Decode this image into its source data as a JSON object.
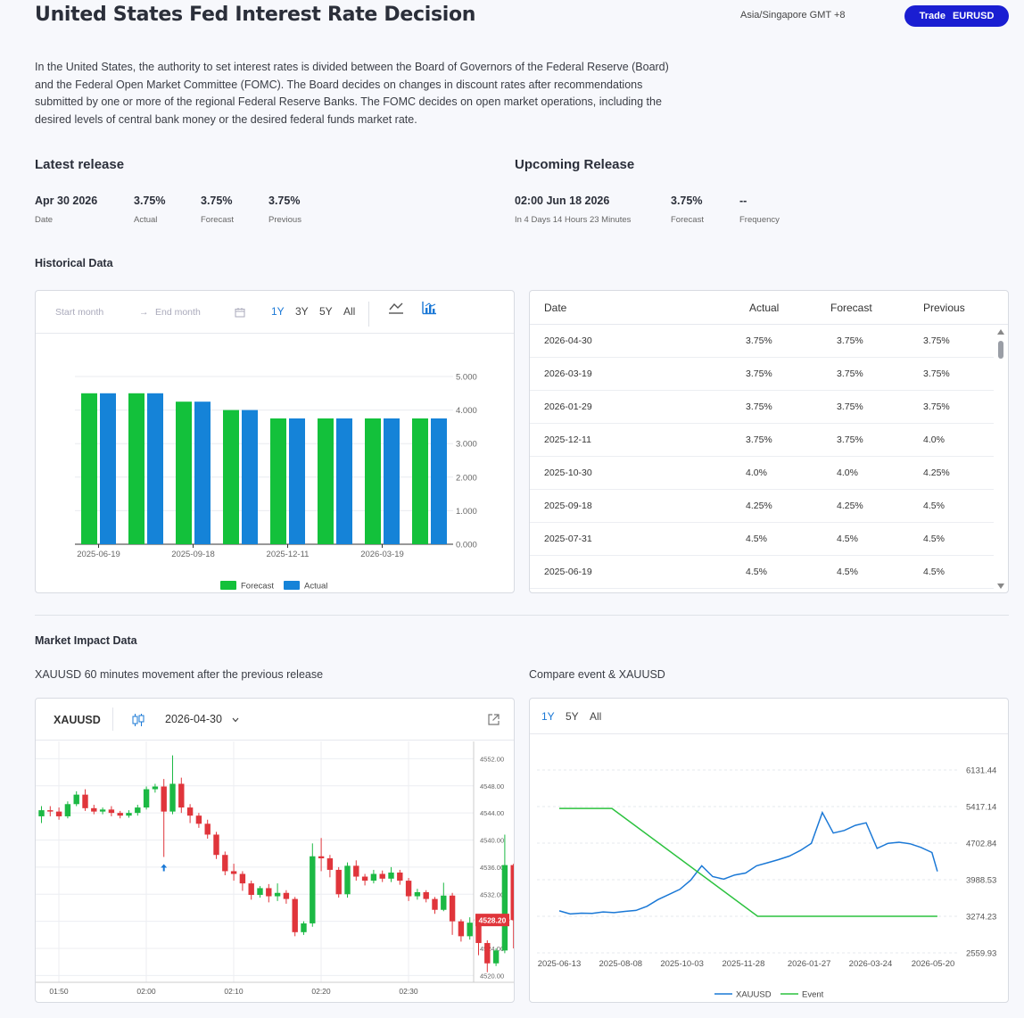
{
  "header": {
    "title": "United States Fed Interest Rate Decision",
    "timezone": "Asia/Singapore GMT +8",
    "trade_label": "Trade",
    "trade_symbol": "EURUSD"
  },
  "description": "In the United States, the authority to set interest rates is divided between the Board of Governors of the Federal Reserve (Board) and the Federal Open Market Committee (FOMC). The Board decides on changes in discount rates after recommendations submitted by one or more of the regional Federal Reserve Banks. The FOMC decides on open market operations, including the desired levels of central bank money or the desired federal funds market rate.",
  "latest": {
    "heading": "Latest release",
    "date_value": "Apr 30 2026",
    "date_label": "Date",
    "actual_value": "3.75%",
    "actual_label": "Actual",
    "forecast_value": "3.75%",
    "forecast_label": "Forecast",
    "previous_value": "3.75%",
    "previous_label": "Previous"
  },
  "upcoming": {
    "heading": "Upcoming Release",
    "time_value": "02:00 Jun 18 2026",
    "time_label": "In 4 Days 14 Hours 23 Minutes",
    "forecast_value": "3.75%",
    "forecast_label": "Forecast",
    "frequency_value": "--",
    "frequency_label": "Frequency"
  },
  "historical": {
    "heading": "Historical Data",
    "start_placeholder": "Start month",
    "end_placeholder": "End month",
    "arrow": "→",
    "ranges": [
      "1Y",
      "3Y",
      "5Y",
      "All"
    ],
    "active_range": "1Y",
    "table": {
      "headers": [
        "Date",
        "Actual",
        "Forecast",
        "Previous"
      ],
      "rows": [
        [
          "2026-04-30",
          "3.75%",
          "3.75%",
          "3.75%"
        ],
        [
          "2026-03-19",
          "3.75%",
          "3.75%",
          "3.75%"
        ],
        [
          "2026-01-29",
          "3.75%",
          "3.75%",
          "3.75%"
        ],
        [
          "2025-12-11",
          "3.75%",
          "3.75%",
          "4.0%"
        ],
        [
          "2025-10-30",
          "4.0%",
          "4.0%",
          "4.25%"
        ],
        [
          "2025-09-18",
          "4.25%",
          "4.25%",
          "4.5%"
        ],
        [
          "2025-07-31",
          "4.5%",
          "4.5%",
          "4.5%"
        ],
        [
          "2025-06-19",
          "4.5%",
          "4.5%",
          "4.5%"
        ]
      ]
    }
  },
  "market": {
    "heading": "Market Impact Data",
    "left_caption": "XAUUSD 60 minutes movement after the previous release",
    "right_caption": "Compare event & XAUUSD",
    "symbol": "XAUUSD",
    "date_select": "2026-04-30",
    "compare_ranges": [
      "1Y",
      "5Y",
      "All"
    ],
    "compare_active": "1Y",
    "price_tag": "4528.20"
  },
  "colors": {
    "forecast": "#13c13b",
    "actual": "#1583d8",
    "up": "#1cb944",
    "down": "#e0353b",
    "accent": "#1a1ed2",
    "xauusd_line": "#1a78d6",
    "event_line": "#2cc23f"
  },
  "chart_data": [
    {
      "type": "bar",
      "categories": [
        "2025-06-19",
        "2025-07-31",
        "2025-09-18",
        "2025-10-30",
        "2025-12-11",
        "2026-01-29",
        "2026-03-19",
        "2026-04-30"
      ],
      "x_tick_labels": [
        "2025-06-19",
        "2025-09-18",
        "2025-12-11",
        "2026-03-19"
      ],
      "series": [
        {
          "name": "Forecast",
          "values": [
            4.5,
            4.5,
            4.25,
            4.0,
            3.75,
            3.75,
            3.75,
            3.75
          ]
        },
        {
          "name": "Actual",
          "values": [
            4.5,
            4.5,
            4.25,
            4.0,
            3.75,
            3.75,
            3.75,
            3.75
          ]
        }
      ],
      "ylim": [
        0,
        5
      ],
      "y_ticks": [
        "0.000",
        "1.000",
        "2.000",
        "3.000",
        "4.000",
        "5.000"
      ],
      "y_axis": "right",
      "legend": "bottom",
      "grid": true
    },
    {
      "type": "candlestick",
      "title": "XAUUSD",
      "x_tick_labels": [
        "01:50",
        "02:00",
        "02:10",
        "02:20",
        "02:30"
      ],
      "y_ticks": [
        "4520.00",
        "4524.00",
        "4528.00",
        "4532.00",
        "4536.00",
        "4540.00",
        "4544.00",
        "4548.00",
        "4552.00"
      ],
      "ylim": [
        4519,
        4553.5
      ],
      "y_axis": "right",
      "grid": true,
      "candles": [
        [
          4543.5,
          4544.4,
          4542.5,
          4545.0
        ],
        [
          4544.4,
          4544.2,
          4543.5,
          4545.0
        ],
        [
          4544.2,
          4543.5,
          4543.0,
          4544.8
        ],
        [
          4543.5,
          4545.3,
          4543.2,
          4545.7
        ],
        [
          4545.3,
          4546.7,
          4545.0,
          4547.2
        ],
        [
          4546.7,
          4544.7,
          4544.3,
          4547.5
        ],
        [
          4544.7,
          4544.2,
          4543.8,
          4545.2
        ],
        [
          4544.2,
          4544.5,
          4543.8,
          4544.8
        ],
        [
          4544.5,
          4544.0,
          4543.5,
          4545.0
        ],
        [
          4544.0,
          4543.6,
          4543.2,
          4544.3
        ],
        [
          4543.6,
          4544.0,
          4543.3,
          4544.4
        ],
        [
          4544.0,
          4544.8,
          4543.6,
          4545.2
        ],
        [
          4544.8,
          4547.5,
          4544.5,
          4547.9
        ],
        [
          4547.5,
          4547.9,
          4547.0,
          4548.3
        ],
        [
          4547.9,
          4544.2,
          4537.5,
          4549.0
        ],
        [
          4544.2,
          4548.3,
          4543.8,
          4552.5
        ],
        [
          4548.3,
          4544.8,
          4544.0,
          4549.2
        ],
        [
          4544.8,
          4543.6,
          4542.5,
          4545.3
        ],
        [
          4543.6,
          4542.4,
          4541.8,
          4544.0
        ],
        [
          4542.4,
          4540.8,
          4540.2,
          4543.0
        ],
        [
          4540.8,
          4537.8,
          4537.2,
          4541.2
        ],
        [
          4537.8,
          4535.4,
          4534.8,
          4538.3
        ],
        [
          4535.4,
          4535.0,
          4534.0,
          4536.5
        ],
        [
          4535.0,
          4533.6,
          4532.5,
          4535.4
        ],
        [
          4533.6,
          4531.9,
          4531.2,
          4534.0
        ],
        [
          4531.9,
          4532.9,
          4531.5,
          4533.2
        ],
        [
          4532.9,
          4531.7,
          4530.8,
          4533.5
        ],
        [
          4531.7,
          4532.2,
          4531.0,
          4533.6
        ],
        [
          4532.2,
          4531.3,
          4530.6,
          4532.6
        ],
        [
          4531.3,
          4526.4,
          4525.8,
          4531.6
        ],
        [
          4526.4,
          4527.7,
          4526.0,
          4528.0
        ],
        [
          4527.7,
          4537.6,
          4527.2,
          4539.5
        ],
        [
          4537.6,
          4537.3,
          4535.4,
          4540.3
        ],
        [
          4537.3,
          4535.6,
          4534.5,
          4537.8
        ],
        [
          4535.6,
          4532.0,
          4531.5,
          4536.0
        ],
        [
          4532.0,
          4536.2,
          4531.5,
          4536.7
        ],
        [
          4536.2,
          4534.6,
          4534.0,
          4537.0
        ],
        [
          4534.6,
          4534.0,
          4533.3,
          4535.0
        ],
        [
          4534.0,
          4535.0,
          4533.6,
          4535.6
        ],
        [
          4535.0,
          4534.3,
          4533.8,
          4535.5
        ],
        [
          4534.3,
          4535.2,
          4533.8,
          4536.0
        ],
        [
          4535.2,
          4534.0,
          4533.4,
          4535.6
        ],
        [
          4534.0,
          4531.7,
          4531.0,
          4534.4
        ],
        [
          4531.7,
          4532.3,
          4531.2,
          4532.8
        ],
        [
          4532.3,
          4531.3,
          4530.8,
          4532.6
        ],
        [
          4531.3,
          4529.7,
          4529.1,
          4531.6
        ],
        [
          4529.7,
          4531.8,
          4529.5,
          4533.7
        ],
        [
          4531.8,
          4528.0,
          4526.0,
          4532.2
        ],
        [
          4528.0,
          4525.8,
          4525.0,
          4528.3
        ],
        [
          4525.8,
          4527.8,
          4525.3,
          4528.6
        ],
        [
          4527.8,
          4524.8,
          4523.0,
          4528.2
        ],
        [
          4524.8,
          4521.8,
          4520.5,
          4525.2
        ],
        [
          4521.8,
          4523.7,
          4521.4,
          4524.0
        ],
        [
          4523.7,
          4536.3,
          4523.3,
          4540.8
        ],
        [
          4536.3,
          4528.2,
          4524.0,
          4536.5
        ]
      ],
      "marker": {
        "candle_index": 14,
        "type": "up-arrow"
      }
    },
    {
      "type": "line",
      "x_tick_labels": [
        "2025-06-13",
        "2025-08-08",
        "2025-10-03",
        "2025-11-28",
        "2026-01-27",
        "2026-03-24",
        "2026-05-20"
      ],
      "y_ticks": [
        "2559.93",
        "3274.23",
        "3988.53",
        "4702.84",
        "5417.14",
        "6131.44"
      ],
      "ylim": [
        2559.93,
        6131.44
      ],
      "y_axis": "right",
      "legend": "bottom",
      "grid": true,
      "series": [
        {
          "name": "XAUUSD",
          "x": [
            "2025-06-13",
            "2025-06-23",
            "2025-07-03",
            "2025-07-13",
            "2025-07-23",
            "2025-08-02",
            "2025-08-12",
            "2025-08-22",
            "2025-09-01",
            "2025-09-11",
            "2025-09-21",
            "2025-10-01",
            "2025-10-11",
            "2025-10-21",
            "2025-10-31",
            "2025-11-10",
            "2025-11-20",
            "2025-11-30",
            "2025-12-10",
            "2025-12-20",
            "2025-12-30",
            "2026-01-09",
            "2026-01-19",
            "2026-01-29",
            "2026-02-08",
            "2026-02-18",
            "2026-02-28",
            "2026-03-10",
            "2026-03-20",
            "2026-03-30",
            "2026-04-09",
            "2026-04-19",
            "2026-04-29",
            "2026-05-09",
            "2026-05-19",
            "2026-05-24"
          ],
          "y": [
            3380,
            3320,
            3335,
            3330,
            3360,
            3345,
            3370,
            3390,
            3470,
            3600,
            3700,
            3800,
            3980,
            4260,
            4050,
            4000,
            4080,
            4120,
            4260,
            4320,
            4380,
            4450,
            4560,
            4700,
            5300,
            4900,
            4950,
            5050,
            5100,
            4600,
            4700,
            4720,
            4690,
            4620,
            4520,
            4150
          ]
        },
        {
          "name": "Event",
          "x": [
            "2025-06-13",
            "2025-07-31",
            "2025-12-11",
            "2026-05-24"
          ],
          "y": [
            5380,
            5380,
            3275,
            3275
          ]
        }
      ]
    }
  ]
}
